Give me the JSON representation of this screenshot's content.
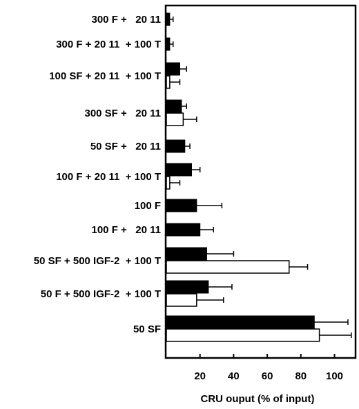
{
  "chart_data": {
    "type": "bar",
    "orientation": "horizontal",
    "xlabel": "CRU ouput (% of input)",
    "xlim": [
      0,
      113
    ],
    "xticks": [
      20,
      40,
      60,
      80,
      100
    ],
    "grid": false,
    "colors": {
      "black_series": "#000000",
      "white_series": "#ffffff",
      "outline": "#000000"
    },
    "categories": [
      "300 F +   20 11",
      "300 F + 20 11  + 100 T",
      "100 SF + 20 11  + 100 T",
      "300 SF +   20 11",
      "50 SF +   20 11",
      "100 F + 20 11  + 100 T",
      "100 F",
      "100 F +   20 11",
      "50 SF + 500 IGF-2  + 100 T",
      "50 F + 500 IGF-2  + 100 T",
      "50 SF"
    ],
    "series": [
      {
        "fill": "black",
        "values": [
          2,
          2,
          8,
          9,
          11,
          15,
          18,
          20,
          24,
          25,
          88
        ],
        "errors": [
          2,
          2,
          4,
          3,
          3,
          5,
          15,
          8,
          16,
          14,
          20
        ]
      },
      {
        "fill": "white",
        "values": [
          null,
          null,
          2,
          10,
          null,
          2,
          null,
          null,
          73,
          18,
          91
        ],
        "errors": [
          null,
          null,
          6,
          8,
          null,
          6,
          null,
          null,
          11,
          16,
          19
        ]
      }
    ]
  }
}
